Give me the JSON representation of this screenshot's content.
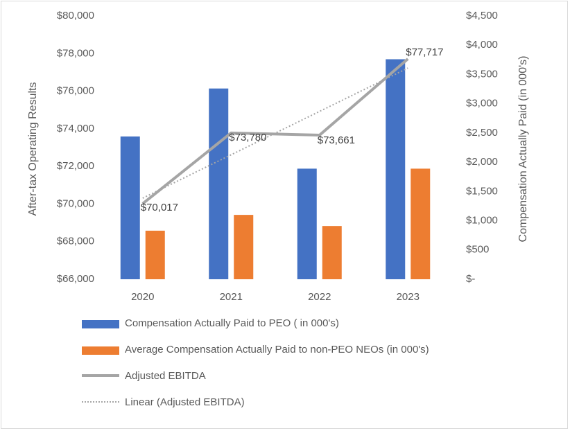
{
  "chart_data": {
    "type": "bar",
    "categories": [
      "2020",
      "2021",
      "2022",
      "2023"
    ],
    "series": [
      {
        "name": "Compensation Actually Paid to PEO ( in 000's)",
        "type": "bar",
        "axis": "right",
        "color": "#4472c4",
        "values": [
          2440,
          3260,
          1890,
          3760
        ]
      },
      {
        "name": "Average Compensation Actually Paid to non-PEO NEOs  (in 000's)",
        "type": "bar",
        "axis": "right",
        "color": "#ed7d31",
        "values": [
          830,
          1100,
          910,
          1890
        ]
      },
      {
        "name": "Adjusted EBITDA",
        "type": "line",
        "axis": "left",
        "color": "#a5a5a5",
        "values": [
          70017,
          73780,
          73661,
          77717
        ],
        "labels": [
          "$70,017",
          "$73,780",
          "$73,661",
          "$77,717"
        ]
      },
      {
        "name": "Linear (Adjusted EBITDA)",
        "type": "line",
        "style": "dotted",
        "axis": "left",
        "color": "#a5a5a5",
        "values": [
          70311,
          72617,
          74923,
          77229
        ]
      }
    ],
    "left_axis": {
      "title": "After-tax Operating Results",
      "ylim": [
        66000,
        80000
      ],
      "ticks": [
        "$66,000",
        "$68,000",
        "$70,000",
        "$72,000",
        "$74,000",
        "$76,000",
        "$78,000",
        "$80,000"
      ]
    },
    "right_axis": {
      "title": "Compensation Actually Paid (in 000's)",
      "ylim": [
        0,
        4500
      ],
      "ticks": [
        "$-",
        "$500",
        "$1,000",
        "$1,500",
        "$2,000",
        "$2,500",
        "$3,000",
        "$3,500",
        "$4,000",
        "$4,500"
      ]
    },
    "grid": false,
    "legend_position": "bottom"
  }
}
